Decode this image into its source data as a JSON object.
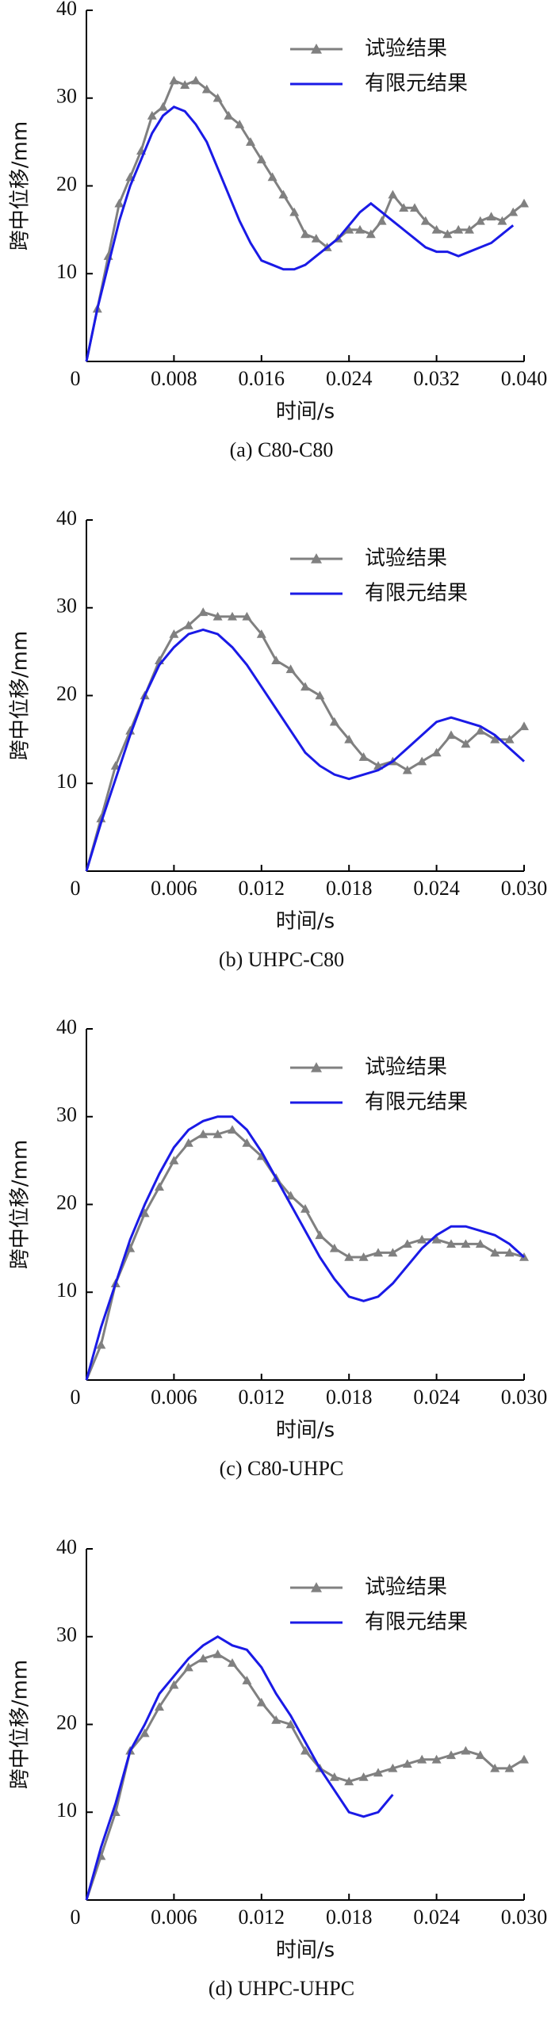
{
  "chart_data": [
    {
      "type": "line",
      "caption": "(a)  C80-C80",
      "x_label": "时间/s",
      "y_label": "跨中位移/mm",
      "x": [
        0,
        0.001,
        0.002,
        0.003,
        0.004,
        0.005,
        0.006,
        0.007,
        0.008,
        0.009,
        0.01,
        0.011,
        0.012,
        0.013,
        0.014,
        0.015,
        0.016,
        0.017,
        0.018,
        0.019,
        0.02,
        0.021,
        0.022,
        0.023,
        0.024,
        0.025,
        0.026,
        0.027,
        0.028,
        0.029,
        0.03,
        0.031,
        0.032,
        0.033,
        0.034,
        0.035,
        0.036,
        0.037,
        0.038,
        0.039,
        0.04
      ],
      "xlim": [
        0,
        0.04
      ],
      "xticks": [
        0,
        0.008,
        0.016,
        0.024,
        0.032,
        {
          "value": 0.04,
          "label": "0.040"
        }
      ],
      "ylim": [
        0,
        40
      ],
      "yticks": [
        10,
        20,
        30,
        40
      ],
      "series": [
        {
          "name": "试验结果",
          "color": "#808080",
          "marker": "triangle",
          "values": [
            0,
            6,
            12,
            18,
            21,
            24,
            28,
            29,
            32,
            31.5,
            32,
            31,
            30,
            28,
            27,
            25,
            23,
            21,
            19,
            17,
            14.5,
            14,
            13,
            14,
            15,
            15,
            14.5,
            16,
            19,
            17.5,
            17.5,
            16,
            15,
            14.5,
            15,
            15,
            16,
            16.5,
            16,
            17,
            18
          ]
        },
        {
          "name": "有限元结果",
          "color": "#1a1ae6",
          "values": [
            0,
            6,
            11,
            16,
            20,
            23,
            26,
            28,
            29,
            28.5,
            27,
            25,
            22,
            19,
            16,
            13.5,
            11.5,
            11,
            10.5,
            10.5,
            11,
            12,
            13,
            14,
            15.5,
            17,
            18,
            17,
            16,
            15,
            14,
            13,
            12.5,
            12.5,
            12,
            12.5,
            13,
            13.5,
            14.5,
            15.5,
            null
          ]
        }
      ]
    },
    {
      "type": "line",
      "caption": "(b)  UHPC-C80",
      "x_label": "时间/s",
      "y_label": "跨中位移/mm",
      "x": [
        0,
        0.001,
        0.002,
        0.003,
        0.004,
        0.005,
        0.006,
        0.007,
        0.008,
        0.009,
        0.01,
        0.011,
        0.012,
        0.013,
        0.014,
        0.015,
        0.016,
        0.017,
        0.018,
        0.019,
        0.02,
        0.021,
        0.022,
        0.023,
        0.024,
        0.025,
        0.026,
        0.027,
        0.028,
        0.029,
        0.03
      ],
      "xlim": [
        0,
        0.03
      ],
      "xticks": [
        0,
        0.006,
        0.012,
        0.018,
        0.024,
        {
          "value": 0.03,
          "label": "0.030"
        }
      ],
      "ylim": [
        0,
        40
      ],
      "yticks": [
        10,
        20,
        30,
        40
      ],
      "series": [
        {
          "name": "试验结果",
          "color": "#808080",
          "marker": "triangle",
          "values": [
            0,
            6,
            12,
            16,
            20,
            24,
            27,
            28,
            29.5,
            29,
            29,
            29,
            27,
            24,
            23,
            21,
            20,
            17,
            15,
            13,
            12,
            12.5,
            11.5,
            12.5,
            13.5,
            15.5,
            14.5,
            16,
            15,
            15,
            16.5
          ]
        },
        {
          "name": "有限元结果",
          "color": "#1a1ae6",
          "values": [
            0,
            5.5,
            10.5,
            15.5,
            20,
            23.5,
            25.5,
            27,
            27.5,
            27,
            25.5,
            23.5,
            21,
            18.5,
            16,
            13.5,
            12,
            11,
            10.5,
            11,
            11.5,
            12.5,
            14,
            15.5,
            17,
            17.5,
            17,
            16.5,
            15.5,
            14,
            12.5
          ]
        }
      ]
    },
    {
      "type": "line",
      "caption": "(c)  C80-UHPC",
      "x_label": "时间/s",
      "y_label": "跨中位移/mm",
      "x": [
        0,
        0.001,
        0.002,
        0.003,
        0.004,
        0.005,
        0.006,
        0.007,
        0.008,
        0.009,
        0.01,
        0.011,
        0.012,
        0.013,
        0.014,
        0.015,
        0.016,
        0.017,
        0.018,
        0.019,
        0.02,
        0.021,
        0.022,
        0.023,
        0.024,
        0.025,
        0.026,
        0.027,
        0.028,
        0.029,
        0.03
      ],
      "xlim": [
        0,
        0.03
      ],
      "xticks": [
        0,
        0.006,
        0.012,
        0.018,
        0.024,
        {
          "value": 0.03,
          "label": "0.030"
        }
      ],
      "ylim": [
        0,
        40
      ],
      "yticks": [
        10,
        20,
        30,
        40
      ],
      "series": [
        {
          "name": "试验结果",
          "color": "#808080",
          "marker": "triangle",
          "values": [
            0,
            4,
            11,
            15,
            19,
            22,
            25,
            27,
            28,
            28,
            28.5,
            27,
            25.5,
            23,
            21,
            19.5,
            16.5,
            15,
            14,
            14,
            14.5,
            14.5,
            15.5,
            16,
            16,
            15.5,
            15.5,
            15.5,
            14.5,
            14.5,
            14
          ]
        },
        {
          "name": "有限元结果",
          "color": "#1a1ae6",
          "values": [
            0,
            6,
            11,
            16,
            20,
            23.5,
            26.5,
            28.5,
            29.5,
            30,
            30,
            28.5,
            26,
            23,
            20,
            17,
            14,
            11.5,
            9.5,
            9,
            9.5,
            11,
            13,
            15,
            16.5,
            17.5,
            17.5,
            17,
            16.5,
            15.5,
            14
          ]
        }
      ]
    },
    {
      "type": "line",
      "caption": "(d)  UHPC-UHPC",
      "x_label": "时间/s",
      "y_label": "跨中位移/mm",
      "x": [
        0,
        0.001,
        0.002,
        0.003,
        0.004,
        0.005,
        0.006,
        0.007,
        0.008,
        0.009,
        0.01,
        0.011,
        0.012,
        0.013,
        0.014,
        0.015,
        0.016,
        0.017,
        0.018,
        0.019,
        0.02,
        0.021,
        0.022,
        0.023,
        0.024,
        0.025,
        0.026,
        0.027,
        0.028,
        0.029,
        0.03
      ],
      "xlim": [
        0,
        0.03
      ],
      "xticks": [
        0,
        0.006,
        0.012,
        0.018,
        0.024,
        {
          "value": 0.03,
          "label": "0.030"
        }
      ],
      "ylim": [
        0,
        40
      ],
      "yticks": [
        10,
        20,
        30,
        40
      ],
      "series": [
        {
          "name": "试验结果",
          "color": "#808080",
          "marker": "triangle",
          "values": [
            0,
            5,
            10,
            17,
            19,
            22,
            24.5,
            26.5,
            27.5,
            28,
            27,
            25,
            22.5,
            20.5,
            20,
            17,
            15,
            14,
            13.5,
            14,
            14.5,
            15,
            15.5,
            16,
            16,
            16.5,
            17,
            16.5,
            15,
            15,
            16
          ]
        },
        {
          "name": "有限元结果",
          "color": "#1a1ae6",
          "values": [
            0,
            6,
            11,
            17,
            20,
            23.5,
            25.5,
            27.5,
            29,
            30,
            29,
            28.5,
            26.5,
            23.5,
            21,
            18,
            15,
            12.5,
            10,
            9.5,
            10,
            12,
            null,
            null,
            null,
            null,
            null,
            null,
            null,
            null,
            null
          ]
        }
      ]
    }
  ]
}
